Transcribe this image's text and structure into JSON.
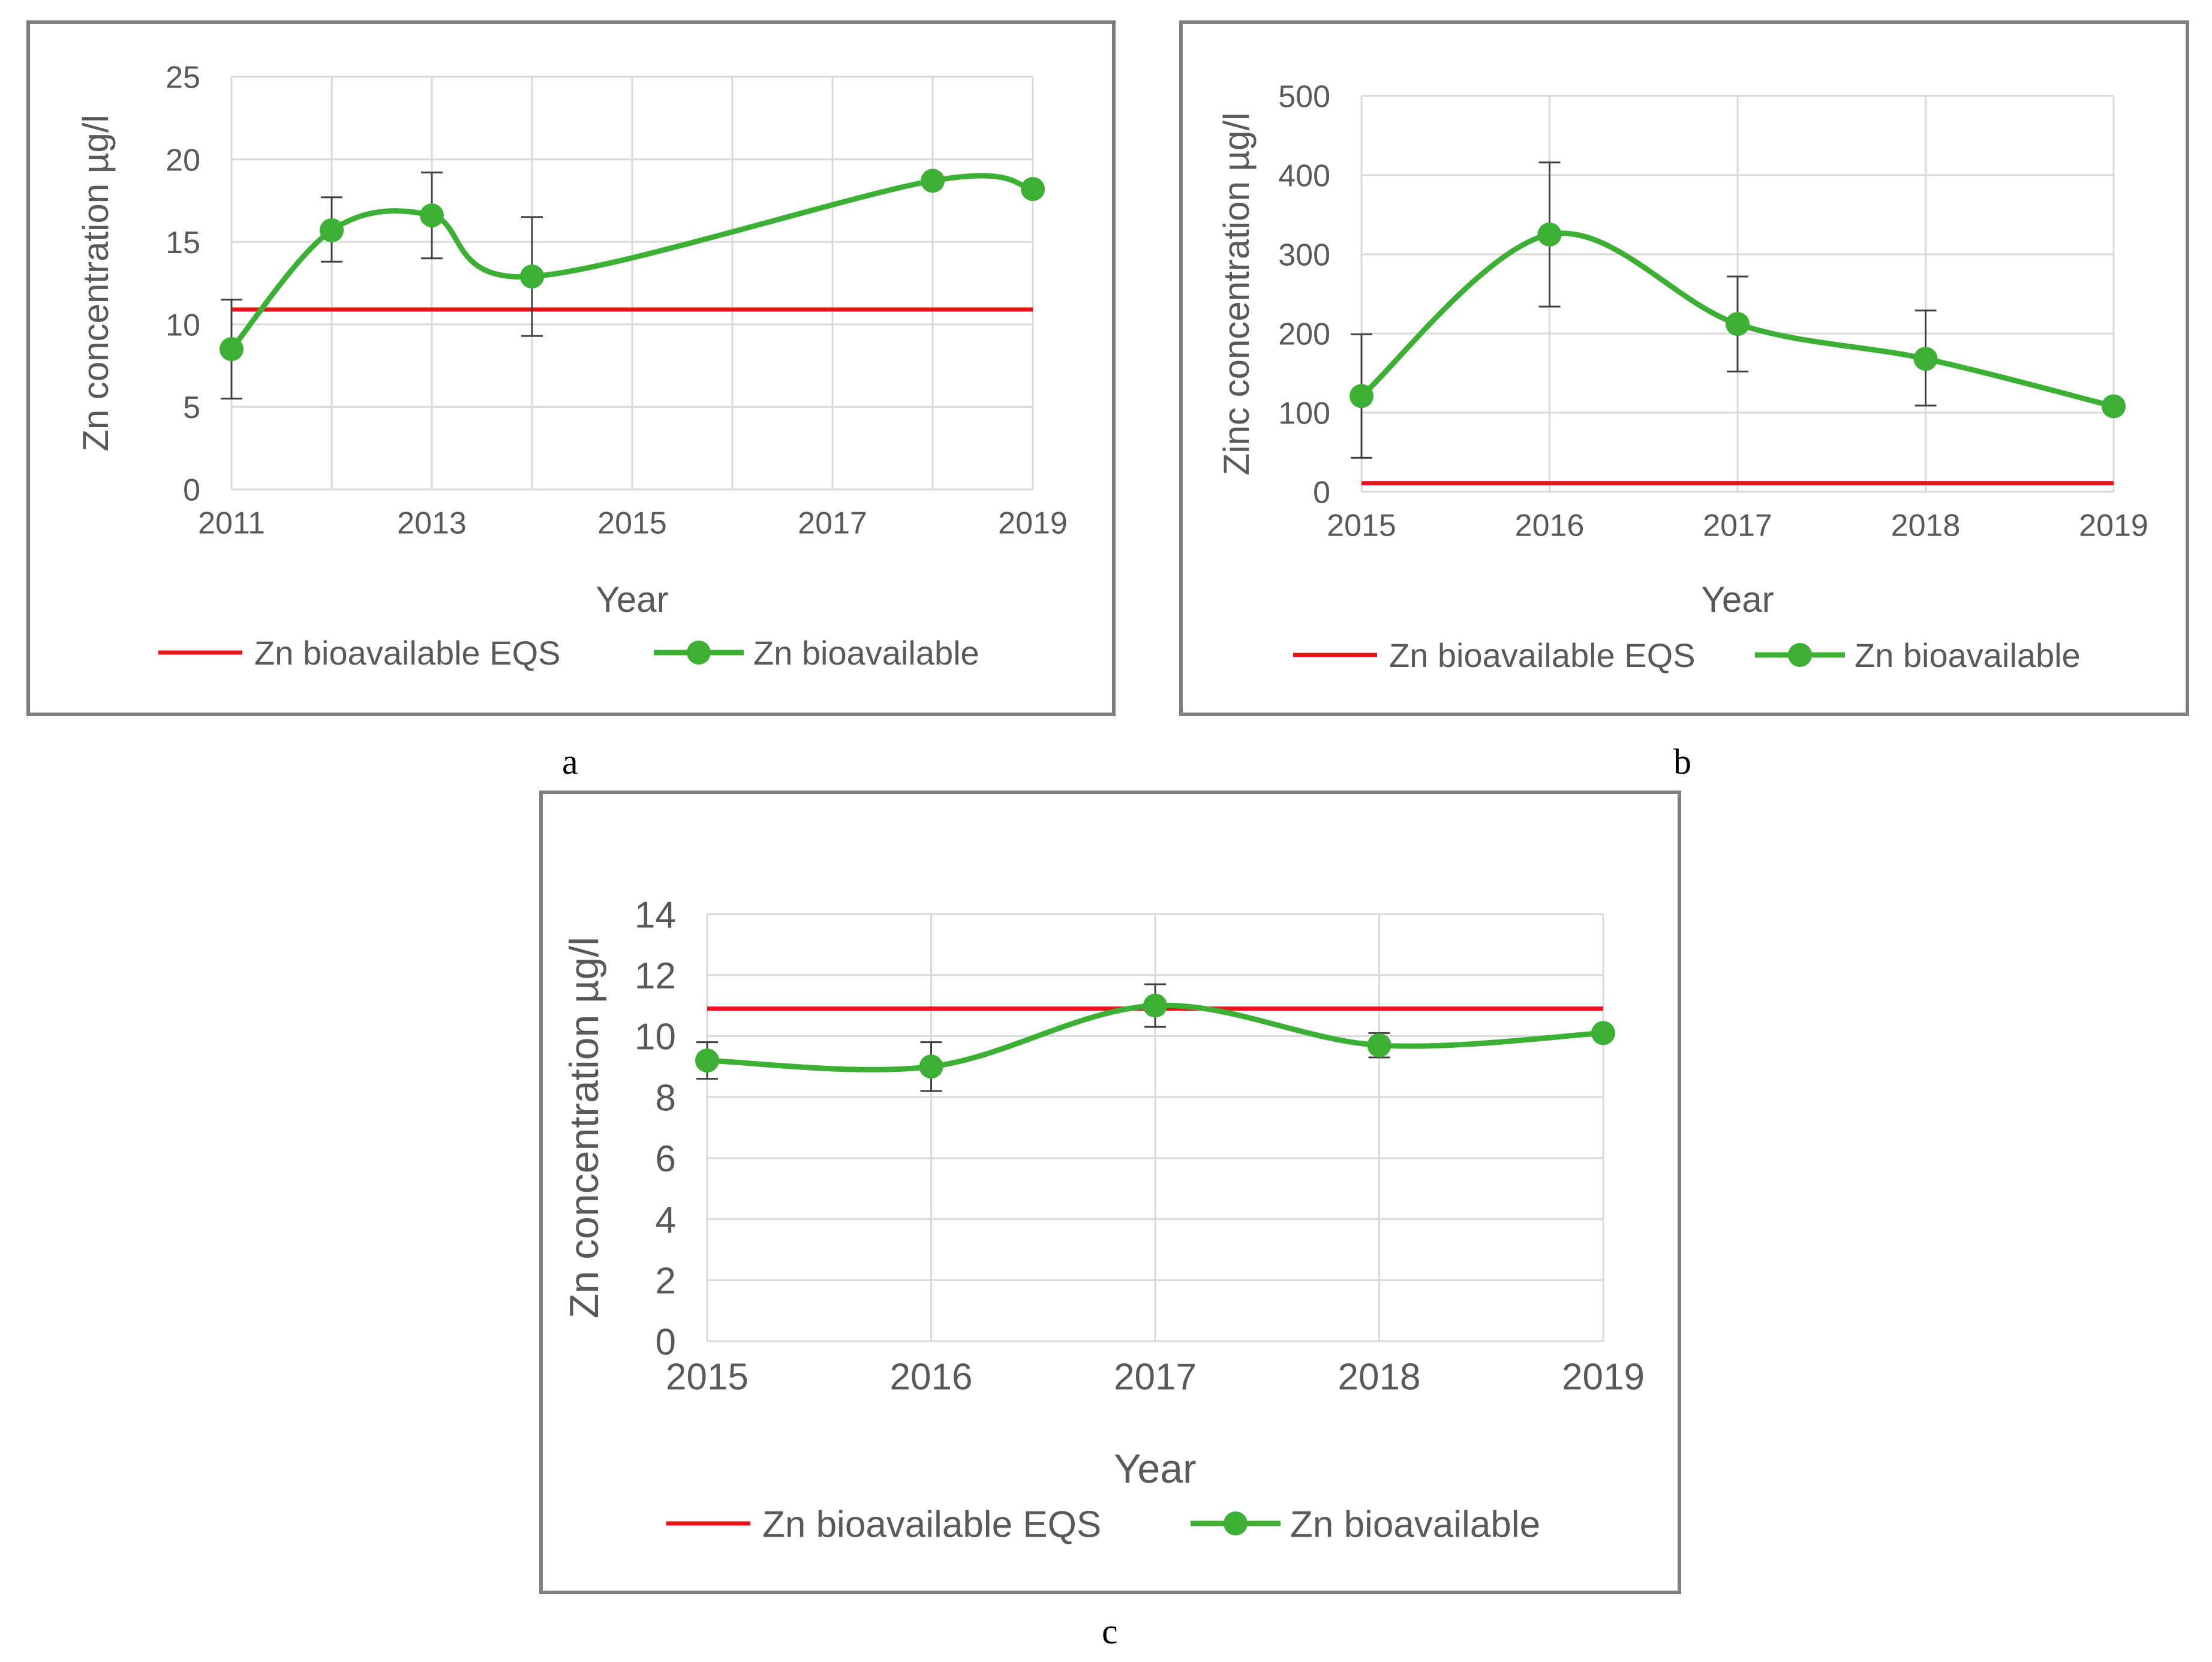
{
  "colors": {
    "series": "#3cb034",
    "eqs": "#e8141a",
    "grid": "#d9d9d9",
    "axis_text": "#595959",
    "error_bar": "#404040"
  },
  "chart_data": [
    {
      "panel": "a",
      "type": "line",
      "title": "",
      "xlabel": "Year",
      "ylabel": "Zn concentration µg/l",
      "xlim": [
        2011,
        2019
      ],
      "ylim": [
        0,
        25
      ],
      "xticks": [
        "2011",
        "2013",
        "2015",
        "2017",
        "2019"
      ],
      "yticks": [
        "0",
        "5",
        "10",
        "15",
        "20",
        "25"
      ],
      "grid": true,
      "legend_position": "bottom",
      "series": [
        {
          "name": "Zn bioavailable EQS",
          "style": "line",
          "x": [
            2011,
            2019
          ],
          "values": [
            10.9,
            10.9
          ]
        },
        {
          "name": "Zn bioavailable",
          "style": "line-marker-smooth",
          "x": [
            2011,
            2012,
            2013,
            2014,
            2018,
            2019
          ],
          "values": [
            8.5,
            15.7,
            16.6,
            12.9,
            18.7,
            18.2
          ],
          "error_low": [
            5.5,
            13.8,
            14.0,
            9.3,
            null,
            null
          ],
          "error_high": [
            11.5,
            17.7,
            19.2,
            16.5,
            null,
            null
          ]
        }
      ]
    },
    {
      "panel": "b",
      "type": "line",
      "title": "",
      "xlabel": "Year",
      "ylabel": "Zinc concentration µg/l",
      "xlim": [
        2015,
        2019
      ],
      "ylim": [
        0,
        500
      ],
      "xticks": [
        "2015",
        "2016",
        "2017",
        "2018",
        "2019"
      ],
      "yticks": [
        "0",
        "100",
        "200",
        "300",
        "400",
        "500"
      ],
      "grid": true,
      "legend_position": "bottom",
      "series": [
        {
          "name": "Zn bioavailable EQS",
          "style": "line",
          "x": [
            2015,
            2019
          ],
          "values": [
            10.9,
            10.9
          ]
        },
        {
          "name": "Zn bioavailable",
          "style": "line-marker-smooth",
          "x": [
            2015,
            2016,
            2017,
            2018,
            2019
          ],
          "values": [
            121,
            325,
            212,
            168,
            108
          ],
          "error_low": [
            43,
            234,
            152,
            109,
            null
          ],
          "error_high": [
            199,
            416,
            272,
            229,
            null
          ]
        }
      ]
    },
    {
      "panel": "c",
      "type": "line",
      "title": "",
      "xlabel": "Year",
      "ylabel": "Zn concentration µg/l",
      "xlim": [
        2015,
        2019
      ],
      "ylim": [
        0,
        14
      ],
      "xticks": [
        "2015",
        "2016",
        "2017",
        "2018",
        "2019"
      ],
      "yticks": [
        "0",
        "2",
        "4",
        "6",
        "8",
        "10",
        "12",
        "14"
      ],
      "grid": true,
      "legend_position": "bottom",
      "series": [
        {
          "name": "Zn bioavailable EQS",
          "style": "line",
          "x": [
            2015,
            2019
          ],
          "values": [
            10.9,
            10.9
          ]
        },
        {
          "name": "Zn bioavailable",
          "style": "line-marker-smooth",
          "x": [
            2015,
            2016,
            2017,
            2018,
            2019
          ],
          "values": [
            9.2,
            9.0,
            11.0,
            9.7,
            10.1
          ],
          "error_low": [
            8.6,
            8.2,
            10.3,
            9.3,
            null
          ],
          "error_high": [
            9.8,
            9.8,
            11.7,
            10.1,
            null
          ]
        }
      ]
    }
  ]
}
